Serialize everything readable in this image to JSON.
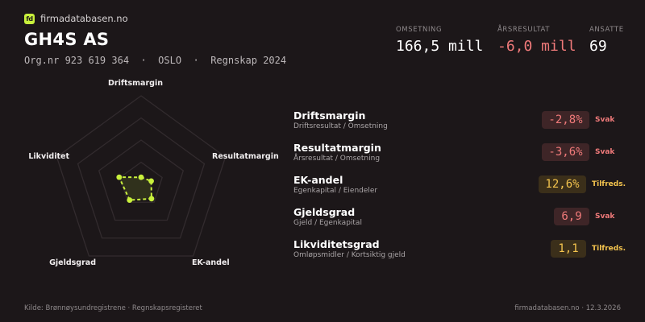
{
  "brand": {
    "logo_text": "fd",
    "name": "firmadatabasen.no"
  },
  "company": {
    "name": "GH4S AS",
    "subline": "Org.nr 923 619 364  ·  OSLO  ·  Regnskap 2024"
  },
  "kpis": [
    {
      "label": "OMSETNING",
      "value": "166,5 mill"
    },
    {
      "label": "ÅRSRESULTAT",
      "value": "-6,0 mill"
    },
    {
      "label": "ANSATTE",
      "value": "69"
    }
  ],
  "radar": {
    "accent_color": "#c8f03c",
    "axes": [
      "Driftsmargin",
      "Resultatmargin",
      "EK-andel",
      "Gjeldsgrad",
      "Likviditet"
    ],
    "scores": [
      0.08,
      0.12,
      0.2,
      0.22,
      0.26
    ]
  },
  "ratios": [
    {
      "title": "Driftsmargin",
      "formula": "Driftsresultat / Omsetning",
      "value": "-2,8%",
      "status": "Svak",
      "level": "bad"
    },
    {
      "title": "Resultatmargin",
      "formula": "Årsresultat / Omsetning",
      "value": "-3,6%",
      "status": "Svak",
      "level": "bad"
    },
    {
      "title": "EK-andel",
      "formula": "Egenkapital / Eiendeler",
      "value": "12,6%",
      "status": "Tilfreds.",
      "level": "ok"
    },
    {
      "title": "Gjeldsgrad",
      "formula": "Gjeld / Egenkapital",
      "value": "6,9",
      "status": "Svak",
      "level": "bad"
    },
    {
      "title": "Likviditetsgrad",
      "formula": "Omløpsmidler / Kortsiktig gjeld",
      "value": "1,1",
      "status": "Tilfreds.",
      "level": "ok"
    }
  ],
  "colors": {
    "background": "#1c1719",
    "negative": "#f07a7a",
    "satisfactory": "#f4c44e"
  },
  "footer": {
    "source": "Kilde: Brønnøysundregistrene · Regnskapsregisteret",
    "site_date": "firmadatabasen.no · 12.3.2026"
  }
}
